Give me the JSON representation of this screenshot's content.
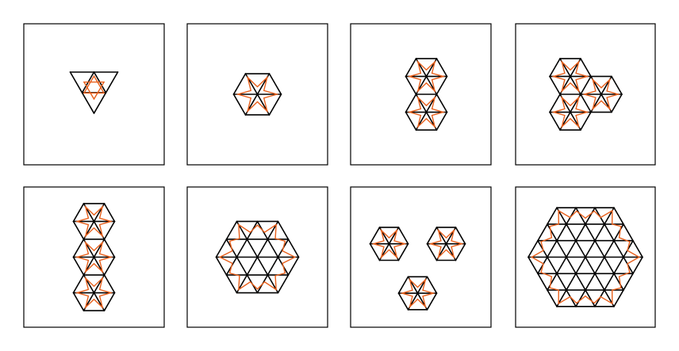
{
  "colors": {
    "background": "#ffffff",
    "frame": "#000000",
    "lattice": "#000000",
    "cycle": "#e8601c"
  },
  "panels": [
    {
      "id": "panel-1",
      "shape": "single-triangle"
    },
    {
      "id": "panel-2",
      "shape": "hexagon"
    },
    {
      "id": "panel-3",
      "shape": "two-joined-hexagons"
    },
    {
      "id": "panel-4",
      "shape": "three-joined-hexagons"
    },
    {
      "id": "panel-5",
      "shape": "vertical-hexagon-stack"
    },
    {
      "id": "panel-6",
      "shape": "large-hexagon"
    },
    {
      "id": "panel-7",
      "shape": "three-lobed-cluster"
    },
    {
      "id": "panel-8",
      "shape": "largest-hexagon"
    }
  ]
}
